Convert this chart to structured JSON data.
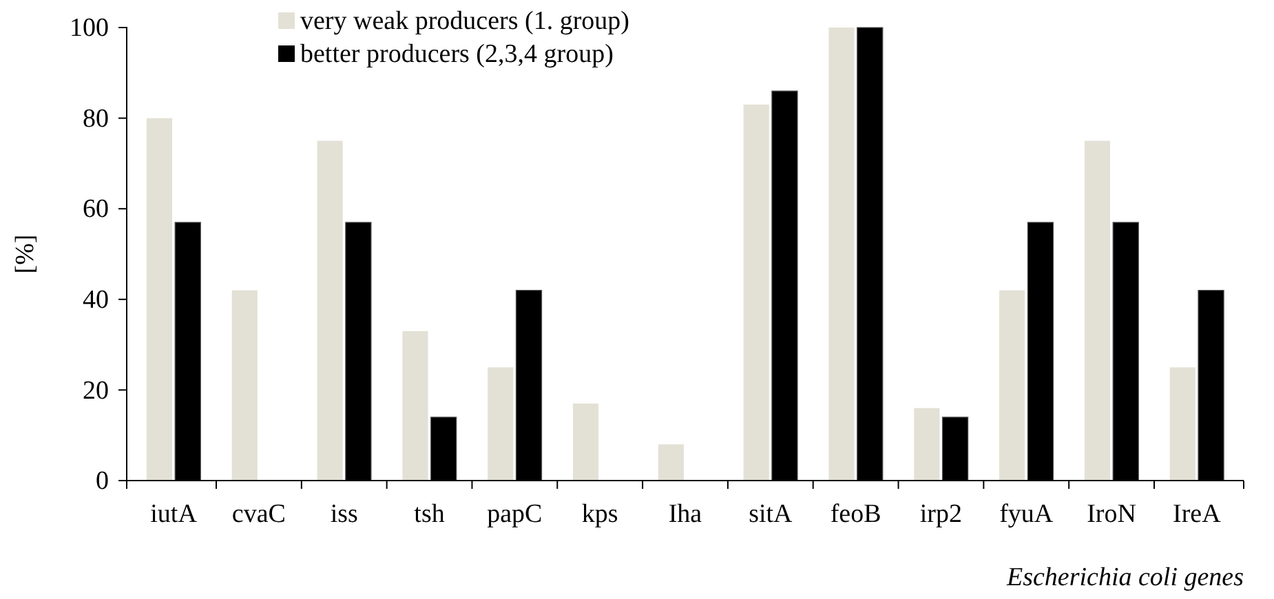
{
  "chart_data": {
    "type": "bar",
    "xlabel": "Escherichia coli genes",
    "ylabel": "[%]",
    "categories": [
      "iutA",
      "cvaC",
      "iss",
      "tsh",
      "papC",
      "kps",
      "Iha",
      "sitA",
      "feoB",
      "irp2",
      "fyuA",
      "IroN",
      "IreA"
    ],
    "series": [
      {
        "name": "very weak producers (1. group)",
        "color": "#e3e1d5",
        "values": [
          80,
          42,
          75,
          33,
          25,
          17,
          8,
          83,
          100,
          16,
          42,
          75,
          25
        ]
      },
      {
        "name": "better producers (2,3,4 group)",
        "color": "#000000",
        "values": [
          57,
          0,
          57,
          14,
          42,
          0,
          0,
          86,
          100,
          14,
          57,
          57,
          42
        ]
      }
    ],
    "ylim": [
      0,
      100
    ],
    "yticks": [
      0,
      20,
      40,
      60,
      80,
      100
    ],
    "grid": false,
    "legend": "top left"
  }
}
